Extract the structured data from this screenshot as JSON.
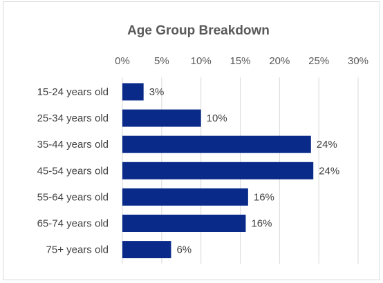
{
  "chart_data": {
    "type": "bar",
    "orientation": "horizontal",
    "title": "Age Group Breakdown",
    "categories": [
      "15-24 years old",
      "25-34 years old",
      "35-44 years old",
      "45-54 years old",
      "55-64 years old",
      "65-74 years old",
      "75+ years old"
    ],
    "values": [
      2.7,
      10.0,
      24.0,
      24.3,
      16.0,
      15.7,
      6.2
    ],
    "data_labels": [
      "3%",
      "10%",
      "24%",
      "24%",
      "16%",
      "16%",
      "6%"
    ],
    "x_ticks": [
      "0%",
      "5%",
      "10%",
      "15%",
      "20%",
      "25%",
      "30%"
    ],
    "xlim": [
      0,
      30
    ],
    "x_axis_position": "top",
    "grid": true,
    "legend": "none",
    "bar_color": "#0a2a8a"
  }
}
